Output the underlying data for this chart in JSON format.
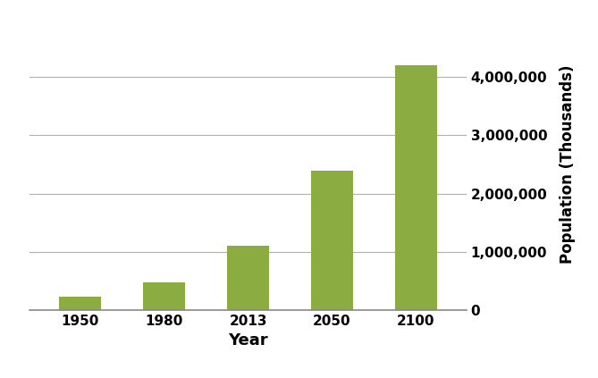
{
  "categories": [
    "1950",
    "1980",
    "2013",
    "2050",
    "2100"
  ],
  "values": [
    229000,
    477000,
    1100000,
    2400000,
    4200000
  ],
  "bar_color": "#8aac40",
  "bar_edgecolor": "#8aac40",
  "xlabel": "Year",
  "ylabel": "Population (Thousands)",
  "xlabel_fontsize": 13,
  "ylabel_fontsize": 12,
  "tick_fontsize": 11,
  "ylim": [
    0,
    5000000
  ],
  "yticks": [
    0,
    1000000,
    2000000,
    3000000,
    4000000
  ],
  "grid_color": "#b0b0b0",
  "background_color": "#ffffff",
  "bar_width": 0.5,
  "fig_width": 6.69,
  "fig_height": 4.23,
  "fig_dpi": 100
}
